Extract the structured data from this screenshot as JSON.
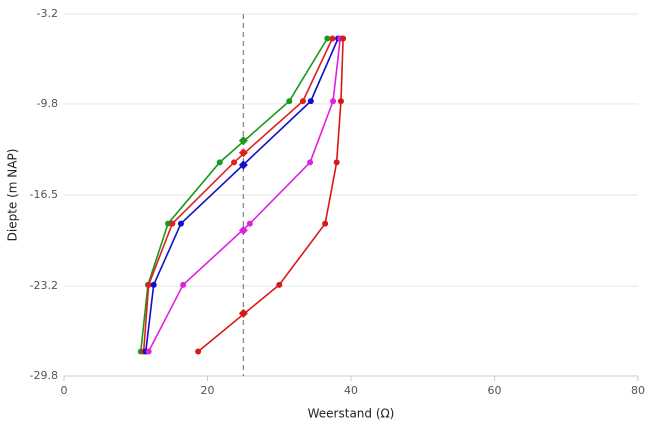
{
  "chart_data": {
    "type": "line",
    "x_label": "Weerstand (Ω)",
    "y_label": "Diepte (m NAP)",
    "xlim": [
      0,
      80
    ],
    "xticks": [
      0,
      20,
      40,
      60,
      80
    ],
    "ylim": [
      -29.8,
      -3.2
    ],
    "yticks": [
      -3.2,
      -9.8,
      -16.5,
      -23.2,
      -29.8
    ],
    "grid": true,
    "reference_x": 25,
    "series": [
      {
        "color": "#1a9a1a",
        "x": [
          36.7,
          31.4,
          21.7,
          14.5,
          11.7,
          10.7
        ],
        "values": [
          -5.0,
          -9.6,
          -14.1,
          -18.6,
          -23.1,
          -28.0
        ],
        "marker": {
          "x": 25,
          "y": -12.5
        }
      },
      {
        "color": "#e02020",
        "x": [
          37.4,
          33.3,
          23.7,
          15.1,
          11.8,
          11.1
        ],
        "values": [
          -5.0,
          -9.6,
          -14.1,
          -18.6,
          -23.1,
          -28.0
        ],
        "marker": {
          "x": 25,
          "y": -13.4
        }
      },
      {
        "color": "#1010c8",
        "x": [
          38.2,
          34.4,
          16.3,
          12.5,
          11.4
        ],
        "values": [
          -5.0,
          -9.6,
          -18.6,
          -23.1,
          -28.0
        ],
        "marker": {
          "x": 25,
          "y": -14.3
        }
      },
      {
        "color": "#e020e0",
        "x": [
          38.5,
          37.5,
          34.3,
          25.9,
          16.6,
          11.8
        ],
        "values": [
          -5.0,
          -9.6,
          -14.1,
          -18.6,
          -23.1,
          -28.0
        ],
        "marker": {
          "x": 25,
          "y": -19.1
        }
      },
      {
        "color": "#d81818",
        "x": [
          38.9,
          38.6,
          38.0,
          36.4,
          30.0,
          18.7
        ],
        "values": [
          -5.0,
          -9.6,
          -14.1,
          -18.6,
          -23.1,
          -28.0
        ],
        "marker": {
          "x": 25,
          "y": -25.2
        }
      }
    ]
  }
}
